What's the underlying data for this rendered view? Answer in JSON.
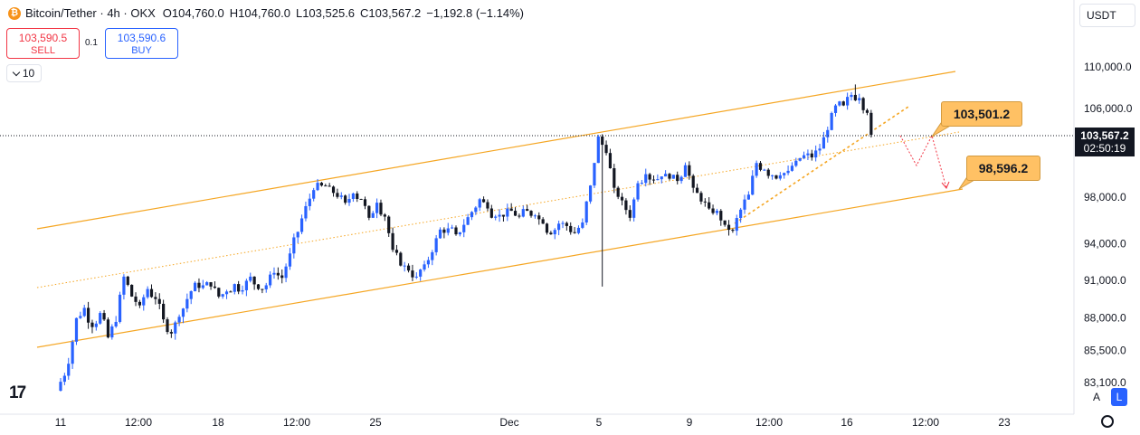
{
  "legend": {
    "symbol": "Bitcoin/Tether · 4h · OKX",
    "open": "O104,760.0",
    "high": "H104,760.0",
    "low": "L103,525.6",
    "close": "C103,567.2",
    "change": "−1,192.8 (−1.14%)",
    "icon": "bitcoin-coin-icon"
  },
  "trade": {
    "sell_price": "103,590.5",
    "sell_label": "SELL",
    "qty": "0.1",
    "buy_price": "103,590.6",
    "buy_label": "BUY"
  },
  "interval": {
    "value": "10"
  },
  "currency": {
    "value": "USDT"
  },
  "scale_buttons": {
    "auto": "A",
    "log": "L"
  },
  "colors": {
    "up": "#2962ff",
    "down": "#131722",
    "channel": "#f5a623",
    "target": "#f23645",
    "tag_bg": "#ffc164"
  },
  "last_price": {
    "price": "103,567.2",
    "countdown": "02:50:19"
  },
  "annotations": {
    "target_1": "103,501.2",
    "target_2": "98,596.2"
  },
  "chart_data": {
    "type": "candlestick",
    "title": "Bitcoin/Tether · 4h · OKX",
    "x_ticks": [
      "11",
      "12:00",
      "18",
      "12:00",
      "25",
      "Dec",
      "5",
      "9",
      "12:00",
      "16",
      "12:00",
      "23"
    ],
    "y_ticks": [
      "110,000.0",
      "106,000.0",
      "98,000.0",
      "94,000.0",
      "91,000.0",
      "88,000.0",
      "85,500.0",
      "83,100.0"
    ],
    "y_tick_values": [
      110000,
      106000,
      98000,
      94000,
      91000,
      88000,
      85500,
      83100
    ],
    "path": [
      [
        0,
        82500
      ],
      [
        3,
        84500
      ],
      [
        5,
        88000
      ],
      [
        7,
        88800
      ],
      [
        9,
        87300
      ],
      [
        11,
        88400
      ],
      [
        13,
        86500
      ],
      [
        15,
        87700
      ],
      [
        17,
        91300
      ],
      [
        19,
        89700
      ],
      [
        21,
        89000
      ],
      [
        23,
        90300
      ],
      [
        25,
        89500
      ],
      [
        27,
        87900
      ],
      [
        29,
        86800
      ],
      [
        31,
        88100
      ],
      [
        33,
        89500
      ],
      [
        35,
        90800
      ],
      [
        37,
        90600
      ],
      [
        39,
        90500
      ],
      [
        41,
        89700
      ],
      [
        43,
        90100
      ],
      [
        45,
        90700
      ],
      [
        47,
        90200
      ],
      [
        49,
        91300
      ],
      [
        51,
        90300
      ],
      [
        53,
        90600
      ],
      [
        55,
        91600
      ],
      [
        57,
        91200
      ],
      [
        59,
        93200
      ],
      [
        61,
        95000
      ],
      [
        63,
        97200
      ],
      [
        65,
        98600
      ],
      [
        67,
        99000
      ],
      [
        69,
        98900
      ],
      [
        71,
        98000
      ],
      [
        73,
        97500
      ],
      [
        75,
        98300
      ],
      [
        77,
        97800
      ],
      [
        79,
        96200
      ],
      [
        81,
        97500
      ],
      [
        83,
        96300
      ],
      [
        85,
        93500
      ],
      [
        87,
        92200
      ],
      [
        89,
        91800
      ],
      [
        91,
        91300
      ],
      [
        93,
        92300
      ],
      [
        95,
        93300
      ],
      [
        97,
        95200
      ],
      [
        99,
        95300
      ],
      [
        101,
        94800
      ],
      [
        103,
        95600
      ],
      [
        105,
        96700
      ],
      [
        107,
        97800
      ],
      [
        109,
        97000
      ],
      [
        111,
        96300
      ],
      [
        113,
        96300
      ],
      [
        115,
        96800
      ],
      [
        117,
        96300
      ],
      [
        119,
        96800
      ],
      [
        121,
        96400
      ],
      [
        123,
        95700
      ],
      [
        125,
        94800
      ],
      [
        127,
        95700
      ],
      [
        129,
        95500
      ],
      [
        131,
        94900
      ],
      [
        133,
        95800
      ],
      [
        135,
        99000
      ],
      [
        137,
        103400
      ],
      [
        139,
        101900
      ],
      [
        141,
        98800
      ],
      [
        143,
        97700
      ],
      [
        145,
        96200
      ],
      [
        147,
        99200
      ],
      [
        149,
        100000
      ],
      [
        151,
        99500
      ],
      [
        153,
        99800
      ],
      [
        155,
        99600
      ],
      [
        157,
        99400
      ],
      [
        159,
        100800
      ],
      [
        161,
        98800
      ],
      [
        163,
        97600
      ],
      [
        165,
        97000
      ],
      [
        167,
        96800
      ],
      [
        169,
        95600
      ],
      [
        171,
        95100
      ],
      [
        173,
        96900
      ],
      [
        175,
        98200
      ],
      [
        177,
        101000
      ],
      [
        179,
        100400
      ],
      [
        181,
        99900
      ],
      [
        183,
        99900
      ],
      [
        185,
        100300
      ],
      [
        187,
        101200
      ],
      [
        189,
        101700
      ],
      [
        191,
        101500
      ],
      [
        193,
        102300
      ],
      [
        195,
        104000
      ],
      [
        197,
        106300
      ],
      [
        199,
        106300
      ],
      [
        201,
        107300
      ],
      [
        203,
        107000
      ],
      [
        205,
        105600
      ],
      [
        206,
        103567
      ]
    ],
    "ylim": [
      82500,
      111000
    ],
    "xlim": [
      0,
      240
    ]
  }
}
